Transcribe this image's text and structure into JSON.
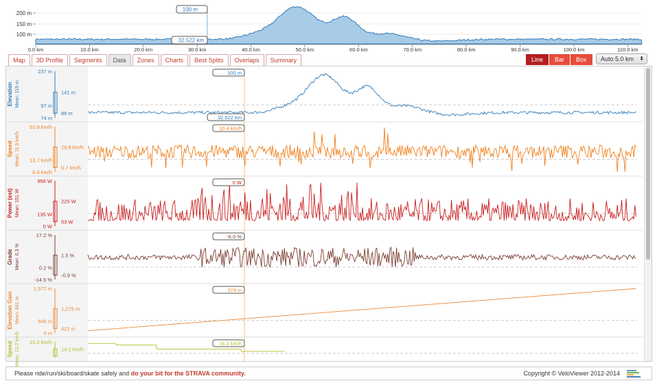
{
  "overview": {
    "y_ticks": [
      "200 m",
      "150 m",
      "100 m"
    ],
    "x_ticks": [
      "0.0 km",
      "10.0 km",
      "20.0 km",
      "30.0 km",
      "40.0 km",
      "50.0 km",
      "60.0 km",
      "70.0 km",
      "80.0 km",
      "90.0 km",
      "100.0 km",
      "110.0 km"
    ],
    "cursor_value": "100 m",
    "cursor_distance": "32.522 km"
  },
  "tabs": [
    "Map",
    "3D Profile",
    "Segments",
    "Data",
    "Zones",
    "Charts",
    "Best Splits",
    "Overlaps",
    "Summary"
  ],
  "active_tab": "Data",
  "modes": [
    "Line",
    "Bar",
    "Box"
  ],
  "active_mode": "Line",
  "interval": "Auto 5.0 km",
  "charts": [
    {
      "name": "Elevation",
      "mean": "Mean: 119 m",
      "color": "#2f7ab8",
      "max": "237 m",
      "min": "74 m",
      "low": "97 m",
      "box_top": "141 m",
      "box_bot": "89 m",
      "cursor": "100 m",
      "cursor2": "32.522 km"
    },
    {
      "name": "Speed",
      "mean": "Mean: 11.9 km/h",
      "color": "#f07f1a",
      "max": "52.9 km/h",
      "min": "0.4 km/h",
      "low": "13.7 km/h",
      "box_top": "19.8 km/h",
      "box_bot": "0.7 km/h",
      "cursor": "10.4 km/h"
    },
    {
      "name": "Power (est)",
      "mean": "Mean: 151 W",
      "color": "#c91c1c",
      "max": "956 W",
      "min": "0 W",
      "low": "135 W",
      "box_top": "225 W",
      "box_bot": "53 W",
      "cursor": "0 W"
    },
    {
      "name": "Grade",
      "mean": "Mean: 0.3 %",
      "color": "#7a3b2e",
      "max": "17.2 %",
      "min": "-14.5 %",
      "low": "0.2 %",
      "box_top": "1.5 %",
      "box_bot": "-0.9 %",
      "cursor": "-6.0 %"
    },
    {
      "name": "Elevation Gain",
      "mean": "Mean: 841 m",
      "color": "#e8893a",
      "max": "1,577 m",
      "min": "0 m",
      "low": "848 m",
      "box_top": "1,275 m",
      "box_bot": "422 m",
      "cursor": "374 m"
    },
    {
      "name": "Speed",
      "mean": "Mean: 13.2 km/h",
      "color": "#b5ba2d",
      "max": "23.2 km/h",
      "min": "",
      "low": "",
      "box_top": "14.1 km/h",
      "box_bot": "",
      "cursor": "16.3 km/h"
    }
  ],
  "footer": {
    "text": "Please ride/run/ski/board/skate safely and ",
    "highlight": "do your bit for the STRAVA community.",
    "copyright": "Copyright © VeloViewer 2012-2014"
  }
}
